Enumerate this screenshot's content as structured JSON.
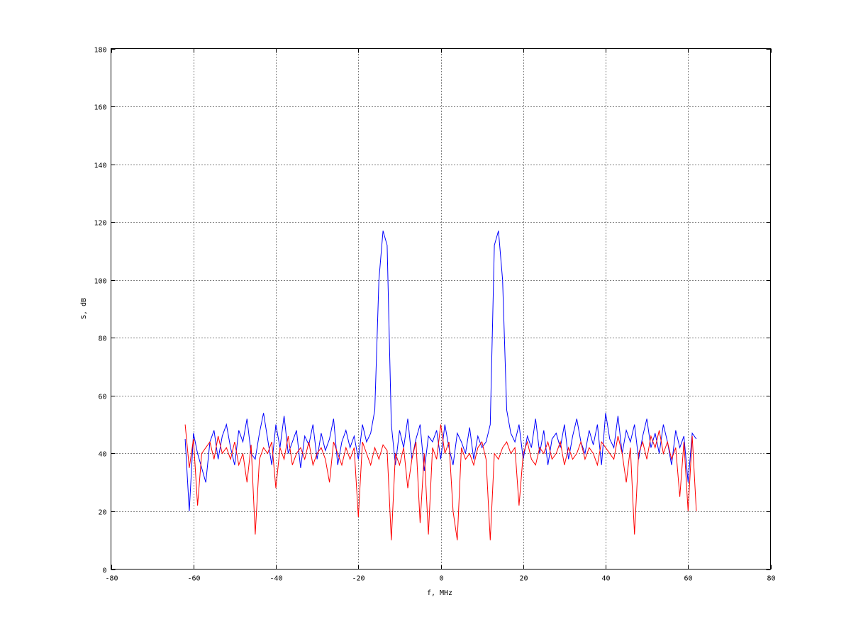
{
  "chart_data": {
    "type": "line",
    "title": "",
    "xlabel": "f, MHz",
    "ylabel": "S, dB",
    "xlim": [
      -80,
      80
    ],
    "ylim": [
      0,
      180
    ],
    "xticks": [
      -80,
      -60,
      -40,
      -20,
      0,
      20,
      40,
      60,
      80
    ],
    "yticks": [
      0,
      20,
      40,
      60,
      80,
      100,
      120,
      140,
      160,
      180
    ],
    "grid": true,
    "x_start": -62,
    "x_step": 1,
    "series": [
      {
        "color": "#0000ff",
        "values": [
          45,
          20,
          47,
          40,
          35,
          30,
          44,
          48,
          38,
          46,
          50,
          42,
          36,
          48,
          44,
          52,
          40,
          38,
          47,
          54,
          45,
          36,
          50,
          42,
          53,
          40,
          44,
          48,
          35,
          46,
          43,
          50,
          38,
          47,
          41,
          45,
          52,
          36,
          44,
          48,
          42,
          46,
          38,
          50,
          44,
          47,
          55,
          100,
          117,
          112,
          50,
          36,
          48,
          42,
          52,
          38,
          45,
          50,
          34,
          46,
          44,
          48,
          38,
          50,
          42,
          36,
          47,
          44,
          40,
          49,
          38,
          46,
          42,
          44,
          50,
          112,
          117,
          100,
          55,
          47,
          44,
          50,
          38,
          46,
          42,
          52,
          40,
          48,
          36,
          45,
          47,
          42,
          50,
          38,
          46,
          52,
          44,
          40,
          48,
          43,
          50,
          36,
          54,
          45,
          42,
          53,
          40,
          48,
          44,
          50,
          38,
          46,
          52,
          42,
          47,
          40,
          50,
          44,
          36,
          48,
          42,
          46,
          30,
          47,
          45
        ]
      },
      {
        "color": "#ff0000",
        "values": [
          50,
          35,
          45,
          22,
          40,
          42,
          44,
          38,
          46,
          40,
          42,
          38,
          44,
          36,
          40,
          30,
          43,
          12,
          38,
          42,
          40,
          44,
          28,
          42,
          38,
          46,
          36,
          40,
          42,
          38,
          44,
          36,
          40,
          42,
          38,
          30,
          44,
          40,
          36,
          42,
          38,
          42,
          18,
          44,
          40,
          36,
          42,
          38,
          43,
          41,
          10,
          40,
          36,
          42,
          28,
          38,
          44,
          16,
          40,
          12,
          42,
          38,
          50,
          40,
          44,
          20,
          10,
          42,
          38,
          40,
          36,
          42,
          44,
          38,
          10,
          40,
          38,
          42,
          44,
          40,
          42,
          22,
          40,
          44,
          38,
          36,
          42,
          40,
          44,
          38,
          40,
          44,
          36,
          42,
          38,
          40,
          44,
          38,
          42,
          40,
          36,
          44,
          42,
          40,
          38,
          46,
          40,
          30,
          42,
          12,
          40,
          44,
          38,
          46,
          42,
          48,
          40,
          44,
          38,
          42,
          25,
          44,
          20,
          46,
          20
        ]
      }
    ]
  }
}
